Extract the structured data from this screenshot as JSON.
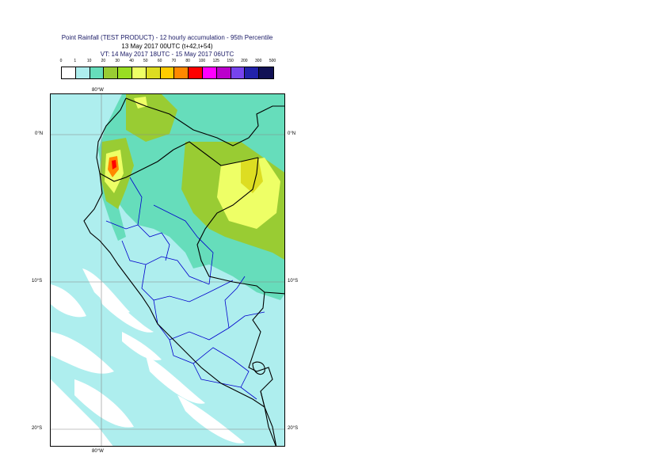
{
  "header": {
    "title_line1": "Point Rainfall (TEST PRODUCT) - 12 hourly accumulation - 95th Percentile",
    "title_line2": "13 May 2017 00UTC (t+42,t+54)",
    "title_line3": "VT: 14 May 2017 18UTC - 15 May 2017 06UTC"
  },
  "legend": {
    "thresholds": [
      "0",
      "1",
      "10",
      "20",
      "30",
      "40",
      "50",
      "60",
      "70",
      "80",
      "100",
      "125",
      "150",
      "200",
      "300",
      "500"
    ],
    "colors": [
      "#ffffff",
      "#aeeeee",
      "#66ddbb",
      "#99cc33",
      "#99dd22",
      "#eeff66",
      "#dddd22",
      "#ffcc00",
      "#ff8800",
      "#ff0000",
      "#ff00ff",
      "#bb00cc",
      "#7744ee",
      "#2222aa",
      "#111155"
    ]
  },
  "map": {
    "lon_label_top": "80°W",
    "lon_label_bottom": "80°W",
    "lat_labels_left": [
      "0°N",
      "10°S",
      "20°S"
    ],
    "lat_labels_right": [
      "0°N",
      "10°S",
      "20°S"
    ],
    "colors": {
      "ocean": "#ffffff",
      "light_rain": "#aeeeee",
      "moderate_rain": "#66ddbb",
      "heavy_rain": "#99cc33",
      "very_heavy_rain": "#eeff66",
      "extreme_rain": "#dddd22",
      "peak_rain": "#ff8800",
      "max_rain": "#ff0000",
      "country_border": "#000000",
      "region_border": "#0000cc",
      "grid": "#888888"
    }
  }
}
